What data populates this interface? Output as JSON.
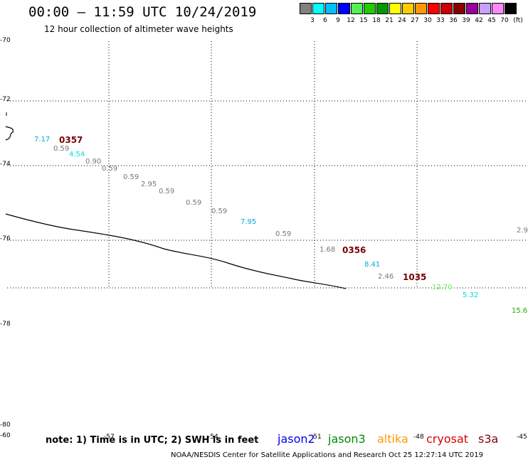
{
  "header": {
    "title": "00:00 – 11:59 UTC 10/24/2019",
    "subtitle": "12 hour collection of altimeter wave heights"
  },
  "legend": {
    "unit": "(ft)",
    "colors": [
      "#808080",
      "#00ffff",
      "#00bfff",
      "#0000ff",
      "#55ee55",
      "#22cc00",
      "#009900",
      "#ffff00",
      "#ffcc00",
      "#ff9900",
      "#ff0000",
      "#cc0000",
      "#880000",
      "#990099",
      "#c8a0ff",
      "#ff88ff",
      "#000000"
    ],
    "labels": [
      "3",
      "6",
      "9",
      "12",
      "15",
      "18",
      "21",
      "24",
      "27",
      "30",
      "33",
      "36",
      "39",
      "42",
      "45",
      "70"
    ]
  },
  "axes": {
    "lat_labels": [
      "-70",
      "-72",
      "-74",
      "-76",
      "-78",
      "-80"
    ],
    "lon_labels": [
      "-57",
      "-54",
      "-51",
      "-48",
      "-45"
    ],
    "bottom_left_label": "-60"
  },
  "wave_labels": [
    {
      "text": "7.17",
      "color": "#00aadd"
    },
    {
      "text": "0.59",
      "color": "#777777"
    },
    {
      "text": "4.54",
      "color": "#00dddd"
    },
    {
      "text": "0.90",
      "color": "#777777"
    },
    {
      "text": "0.59",
      "color": "#777777"
    },
    {
      "text": "0.59",
      "color": "#777777"
    },
    {
      "text": "2.95",
      "color": "#777777"
    },
    {
      "text": "0.59",
      "color": "#777777"
    },
    {
      "text": "0.59",
      "color": "#777777"
    },
    {
      "text": "0.59",
      "color": "#777777"
    },
    {
      "text": "7.95",
      "color": "#00aadd"
    },
    {
      "text": "0.59",
      "color": "#777777"
    },
    {
      "text": "1.68",
      "color": "#777777"
    },
    {
      "text": "8.41",
      "color": "#00aadd"
    },
    {
      "text": "2.46",
      "color": "#777777"
    },
    {
      "text": "12.70",
      "color": "#55ee55"
    },
    {
      "text": "5.32",
      "color": "#00dddd"
    },
    {
      "text": "15.6",
      "color": "#22aa00"
    },
    {
      "text": "2.9",
      "color": "#777777"
    }
  ],
  "pass_times": [
    "0357",
    "0356",
    "1035"
  ],
  "footer": {
    "note": "note: 1) Time is in UTC; 2) SWH is in feet",
    "satellites": [
      {
        "name": "jason2",
        "color": "#0000ee"
      },
      {
        "name": "jason3",
        "color": "#008800"
      },
      {
        "name": "altika",
        "color": "#ff9900"
      },
      {
        "name": "cryosat",
        "color": "#dd0000"
      },
      {
        "name": "s3a",
        "color": "#880000"
      }
    ],
    "credit": "NOAA/NESDIS Center for Satellite Applications and Research    Oct 25 12:27:14 UTC 2019"
  }
}
